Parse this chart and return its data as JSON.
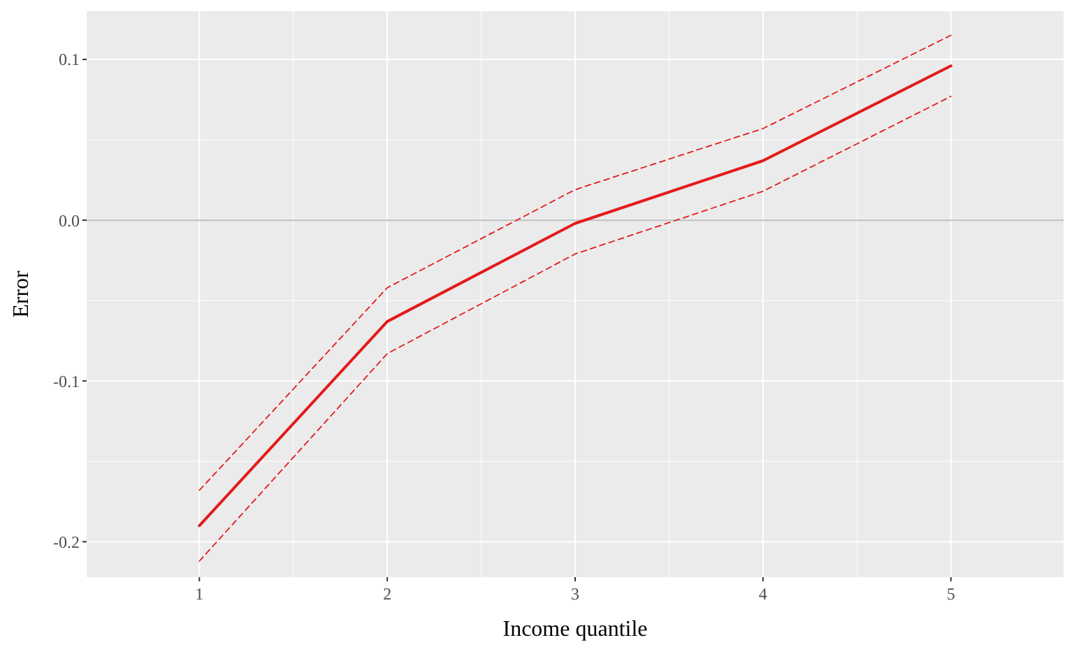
{
  "chart_data": {
    "type": "line",
    "xlabel": "Income quantile",
    "ylabel": "Error",
    "x": [
      1,
      2,
      3,
      4,
      5
    ],
    "series": [
      {
        "color": "#e41a1c",
        "line_style": "solid",
        "values": [
          -0.19,
          -0.063,
          -0.002,
          0.037,
          0.096
        ]
      },
      {
        "color": "#e41a1c",
        "line_style": "dashed",
        "values": [
          -0.168,
          -0.042,
          0.019,
          0.057,
          0.115
        ]
      },
      {
        "color": "#e41a1c",
        "line_style": "dashed",
        "values": [
          -0.212,
          -0.083,
          -0.021,
          0.018,
          0.077
        ]
      }
    ],
    "xlim": [
      0.4,
      5.6
    ],
    "xticks": [
      1,
      2,
      3,
      4,
      5
    ],
    "ylim": [
      -0.222,
      0.13
    ],
    "yticks": [
      {
        "value": -0.2,
        "label": "-0.2"
      },
      {
        "value": -0.1,
        "label": "-0.1"
      },
      {
        "value": 0,
        "label": "0.0"
      },
      {
        "value": 0.1,
        "label": "0.1"
      }
    ],
    "ref_lines": [
      {
        "axis": "y",
        "value": 0,
        "color": "#bdbdbd"
      }
    ],
    "grid": true,
    "marker": "none"
  }
}
